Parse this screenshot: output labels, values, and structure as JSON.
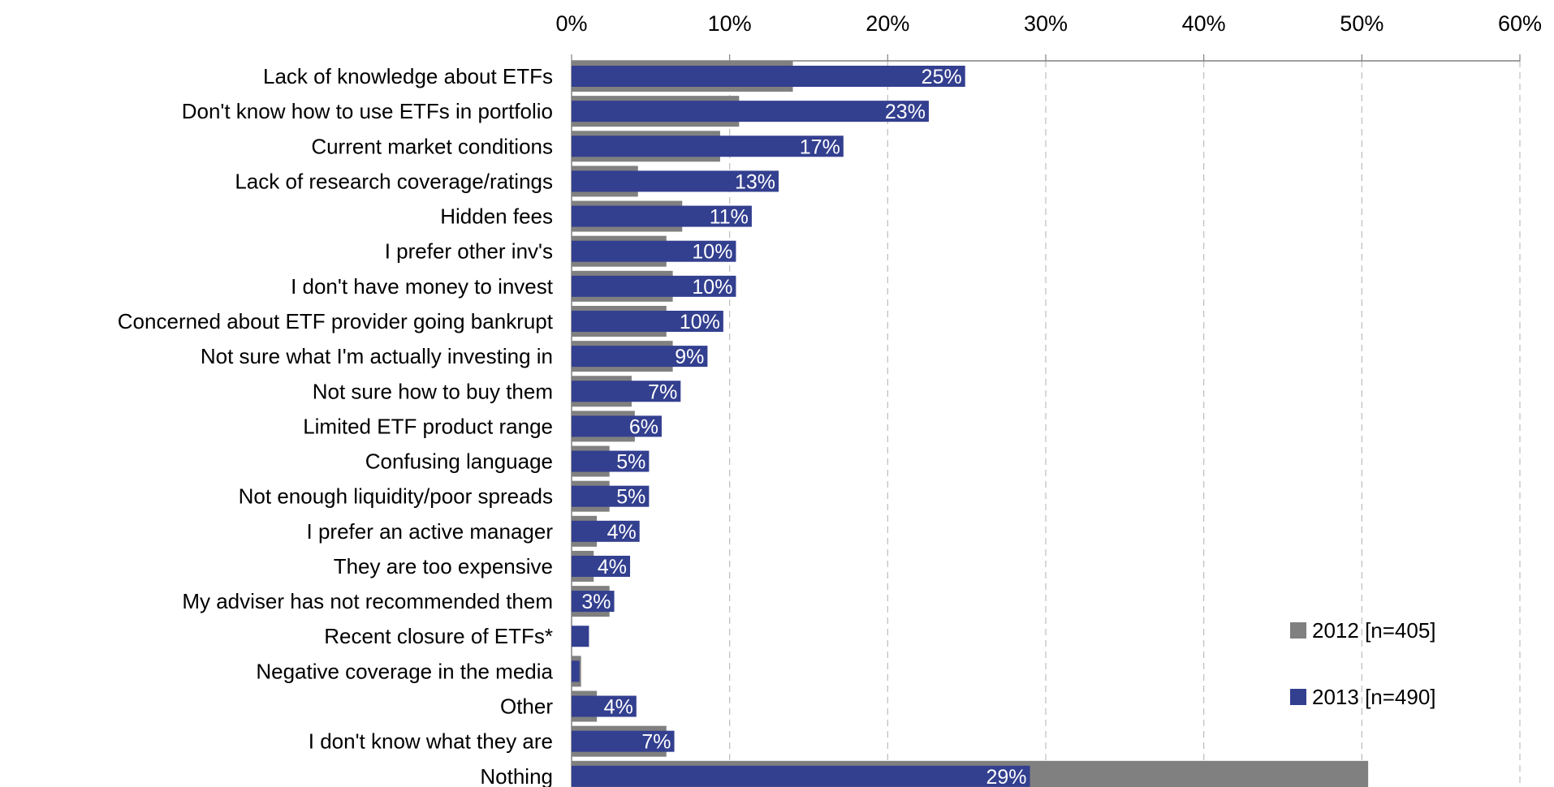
{
  "chart_data": {
    "type": "bar",
    "orientation": "horizontal",
    "title": "",
    "xlabel": "",
    "ylabel": "",
    "xlim": [
      0,
      60
    ],
    "x_tick_values": [
      0,
      10,
      20,
      30,
      40,
      50,
      60
    ],
    "x_tick_labels": [
      "0%",
      "10%",
      "20%",
      "30%",
      "40%",
      "50%",
      "60%"
    ],
    "x_axis_position": "top",
    "grid": "vertical dashed",
    "legend_position": "bottom-right",
    "categories": [
      "Lack of knowledge about ETFs",
      "Don't know how to use ETFs in portfolio",
      "Current market conditions",
      "Lack of research coverage/ratings",
      "Hidden fees",
      "I prefer other inv's",
      "I don't have money to invest",
      "Concerned about ETF provider going bankrupt",
      "Not sure what I'm actually investing in",
      "Not sure how to buy them",
      "Limited ETF product range",
      "Confusing language",
      "Not enough liquidity/poor spreads",
      "I prefer an active manager",
      "They are too expensive",
      "My adviser has not recommended them",
      "Recent closure of ETFs*",
      "Negative coverage in the media",
      "Other",
      "I don't know what they are",
      "Nothing"
    ],
    "series": [
      {
        "name": "2012 [n=405]",
        "color": "#808080",
        "values": [
          14,
          10.6,
          9.4,
          4.2,
          7,
          6,
          6.4,
          6,
          6.4,
          3.8,
          4,
          2.4,
          2.4,
          1.6,
          1.4,
          2.4,
          0,
          0.6,
          1.6,
          6,
          50.4
        ]
      },
      {
        "name": "2013 [n=490]",
        "color": "#333f8f",
        "values": [
          24.9,
          22.6,
          17.2,
          13.1,
          11.4,
          10.4,
          10.4,
          9.6,
          8.6,
          6.9,
          5.7,
          4.9,
          4.9,
          4.3,
          3.7,
          2.7,
          1.1,
          0.5,
          4.1,
          6.5,
          29
        ]
      }
    ],
    "data_labels_2013": [
      "25%",
      "23%",
      "17%",
      "13%",
      "11%",
      "10%",
      "10%",
      "10%",
      "9%",
      "7%",
      "6%",
      "5%",
      "5%",
      "4%",
      "4%",
      "3%",
      "",
      "",
      "4%",
      "7%",
      "29%"
    ]
  }
}
